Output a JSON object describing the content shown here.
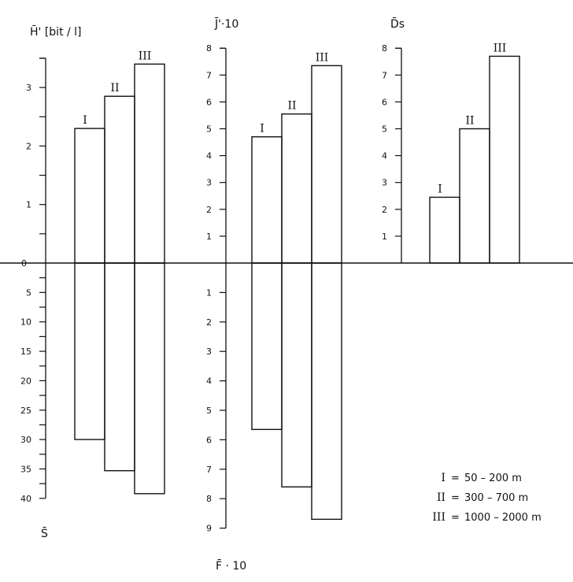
{
  "chart_data": [
    {
      "type": "bar",
      "panel": "H and S",
      "upper": {
        "axis_label": "H̄' [bit / l]",
        "ticks": [
          "0",
          "1",
          "2",
          "3"
        ],
        "ylim": [
          0,
          3.5
        ],
        "values": [
          2.3,
          2.85,
          3.4
        ]
      },
      "lower": {
        "axis_label": "S̄",
        "ticks": [
          "5",
          "10",
          "15",
          "20",
          "25",
          "30",
          "35",
          "40"
        ],
        "ylim": [
          0,
          40
        ],
        "values": [
          30,
          35.3,
          39.2
        ]
      },
      "categories": [
        "I",
        "II",
        "III"
      ]
    },
    {
      "type": "bar",
      "panel": "J and F",
      "upper": {
        "axis_label": "J̄'·10",
        "ticks": [
          "1",
          "2",
          "3",
          "4",
          "5",
          "6",
          "7",
          "8"
        ],
        "ylim": [
          0,
          8
        ],
        "values": [
          4.7,
          5.55,
          7.35
        ]
      },
      "lower": {
        "axis_label": "F̄ · 10",
        "ticks": [
          "1",
          "2",
          "3",
          "4",
          "5",
          "6",
          "7",
          "8",
          "9"
        ],
        "ylim": [
          0,
          9
        ],
        "values": [
          5.65,
          7.6,
          8.7
        ]
      },
      "categories": [
        "I",
        "II",
        "III"
      ]
    },
    {
      "type": "bar",
      "panel": "Ds",
      "upper": {
        "axis_label": "D̄s",
        "ticks": [
          "1",
          "2",
          "3",
          "4",
          "5",
          "6",
          "7",
          "8"
        ],
        "ylim": [
          0,
          8
        ],
        "values": [
          2.45,
          5.0,
          7.7
        ]
      },
      "categories": [
        "I",
        "II",
        "III"
      ]
    }
  ],
  "legend": [
    {
      "key": "I",
      "eq": "=",
      "range": "50 – 200 m"
    },
    {
      "key": "II",
      "eq": "=",
      "range": "300 – 700 m"
    },
    {
      "key": "III",
      "eq": "=",
      "range": "1000 – 2000 m"
    }
  ]
}
